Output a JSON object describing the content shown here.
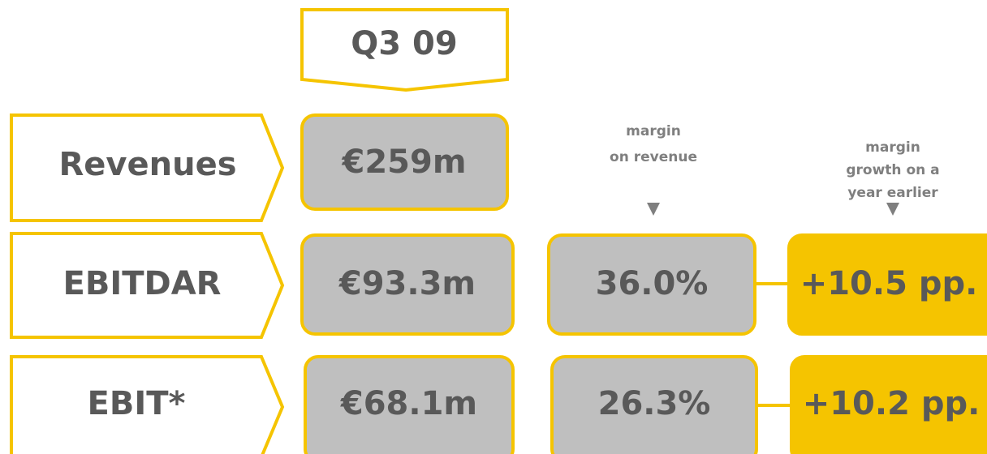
{
  "header": {
    "period": "Q3 09"
  },
  "column_headers": {
    "margin": [
      "margin",
      "on revenue"
    ],
    "growth": [
      "margin",
      "growth on a",
      "year earlier"
    ]
  },
  "rows": [
    {
      "label": "Revenues",
      "value": "€259m"
    },
    {
      "label": "EBITDAR",
      "value": "€93.3m",
      "margin": "36.0%",
      "growth": "+10.5 pp."
    },
    {
      "label": "EBIT*",
      "value": "€68.1m",
      "margin": "26.3%",
      "growth": "+10.2 pp."
    }
  ]
}
